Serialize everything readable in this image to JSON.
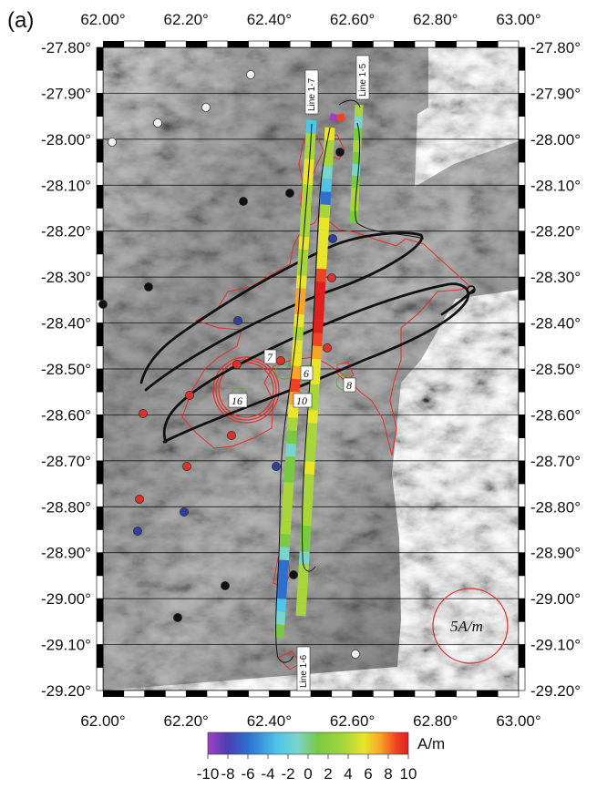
{
  "panel_label": "(a)",
  "lon_ticks": [
    "62.00°",
    "62.20°",
    "62.40°",
    "62.60°",
    "62.80°",
    "63.00°"
  ],
  "lat_ticks": [
    "-27.80°",
    "-27.90°",
    "-28.00°",
    "-28.10°",
    "-28.20°",
    "-28.30°",
    "-28.40°",
    "-28.50°",
    "-28.60°",
    "-28.70°",
    "-28.80°",
    "-28.90°",
    "-29.00°",
    "-29.10°",
    "-29.20°"
  ],
  "line_labels": {
    "line_1_7": "Line 1-7",
    "line_1_5": "Line 1-5",
    "line_1_6": "Line 1-6"
  },
  "site_labels": [
    "7",
    "6",
    "10",
    "8",
    "16"
  ],
  "scale": {
    "label": "5A/m",
    "circle_color": "#e0302a"
  },
  "colorbar": {
    "unit": "A/m",
    "ticks": [
      "-10",
      "-8",
      "-6",
      "-4",
      "-2",
      "0",
      "2",
      "4",
      "6",
      "8",
      "10"
    ],
    "min": -10,
    "max": 10,
    "colors": [
      "#a040c0",
      "#4a3fb0",
      "#2e6fd0",
      "#4fc6e8",
      "#79d4c9",
      "#7ac943",
      "#a8d63a",
      "#e8e52a",
      "#f7a526",
      "#ee4424",
      "#e01f1f"
    ]
  },
  "colors": {
    "dive_track": "#111111",
    "contour": "#e0302a",
    "site_black": "#111111",
    "site_red": "#e0302a",
    "site_blue": "#2f3f9e",
    "site_white": "#f2f2f2"
  }
}
